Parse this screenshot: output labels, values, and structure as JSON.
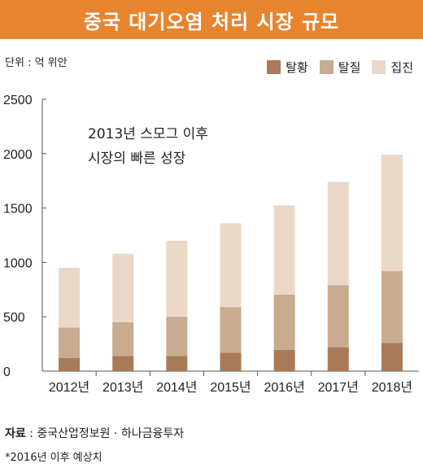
{
  "title": "중국 대기오염 처리 시장 규모",
  "unit_label": "단위 : 억 위안",
  "colors": {
    "title_bg": "#e8842e",
    "desulfurization": "#a87a57",
    "denitrification": "#c9ab90",
    "dust_collection": "#ead8c7"
  },
  "chart_data": {
    "type": "bar",
    "stacked": true,
    "categories": [
      "2012년",
      "2013년",
      "2014년",
      "2015년",
      "2016년",
      "2017년",
      "2018년"
    ],
    "series": [
      {
        "name": "탈황",
        "values": [
          120,
          140,
          140,
          170,
          195,
          220,
          260
        ]
      },
      {
        "name": "탈질",
        "values": [
          280,
          310,
          360,
          420,
          510,
          570,
          660
        ]
      },
      {
        "name": "집진",
        "values": [
          550,
          630,
          700,
          770,
          820,
          950,
          1070
        ]
      }
    ],
    "ylim": [
      0,
      2500
    ],
    "yticks": [
      0,
      500,
      1000,
      1500,
      2000,
      2500
    ],
    "grid": false,
    "legend_position": "top-right",
    "annotation": [
      "2013년 스모그 이후",
      "시장의 빠른 성장"
    ]
  },
  "source": {
    "label": "자료",
    "text": " : 중국산업정보원 · 하나금융투자"
  },
  "footnote": "*2016년 이후 예상치"
}
